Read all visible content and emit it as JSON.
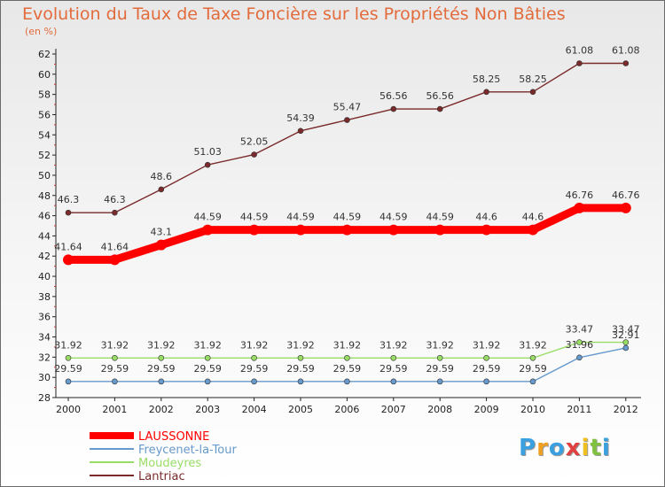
{
  "chart_data": {
    "type": "line",
    "title": "Evolution du Taux de Taxe Foncière sur les Propriétés Non Bâties",
    "ylabel": "(en %)",
    "xlabel": "",
    "ylim": [
      28,
      62
    ],
    "ytick_step": 2,
    "x": [
      "2000",
      "2001",
      "2002",
      "2003",
      "2004",
      "2005",
      "2006",
      "2007",
      "2008",
      "2009",
      "2010",
      "2011",
      "2012"
    ],
    "series": [
      {
        "name": "Lantriac",
        "color": "#7a2a2a",
        "values": [
          46.3,
          46.3,
          48.6,
          51.03,
          52.05,
          54.39,
          55.47,
          56.56,
          56.56,
          58.25,
          58.25,
          61.08,
          61.08
        ],
        "labels": [
          "46.3",
          "46.3",
          "48.6",
          "51.03",
          "52.05",
          "54.39",
          "55.47",
          "56.56",
          "56.56",
          "58.25",
          "58.25",
          "61.08",
          "61.08"
        ]
      },
      {
        "name": "LAUSSONNE",
        "color": "#ff0000",
        "values": [
          41.64,
          41.64,
          43.1,
          44.59,
          44.59,
          44.59,
          44.59,
          44.59,
          44.59,
          44.6,
          44.6,
          46.76,
          46.76
        ],
        "labels": [
          "41.64",
          "41.64",
          "43.1",
          "44.59",
          "44.59",
          "44.59",
          "44.59",
          "44.59",
          "44.59",
          "44.6",
          "44.6",
          "46.76",
          "46.76"
        ]
      },
      {
        "name": "Moudeyres",
        "color": "#99dd66",
        "values": [
          31.92,
          31.92,
          31.92,
          31.92,
          31.92,
          31.92,
          31.92,
          31.92,
          31.92,
          31.92,
          31.92,
          33.47,
          33.47
        ],
        "labels": [
          "31.92",
          "31.92",
          "31.92",
          "31.92",
          "31.92",
          "31.92",
          "31.92",
          "31.92",
          "31.92",
          "31.92",
          "31.92",
          "33.47",
          "33.47"
        ]
      },
      {
        "name": "Freycenet-la-Tour",
        "color": "#6699cc",
        "values": [
          29.59,
          29.59,
          29.59,
          29.59,
          29.59,
          29.59,
          29.59,
          29.59,
          29.59,
          29.59,
          29.59,
          31.96,
          32.91
        ],
        "labels": [
          "29.59",
          "29.59",
          "29.59",
          "29.59",
          "29.59",
          "29.59",
          "29.59",
          "29.59",
          "29.59",
          "29.59",
          "29.59",
          "31.96",
          "32.91"
        ]
      }
    ],
    "legend": {
      "placement": "bottom-left",
      "entries": [
        {
          "name": "LAUSSONNE",
          "color": "#ff0000"
        },
        {
          "name": "Freycenet-la-Tour",
          "color": "#6699cc"
        },
        {
          "name": "Moudeyres",
          "color": "#99dd66"
        },
        {
          "name": "Lantriac",
          "color": "#7a2a2a"
        }
      ]
    },
    "grid": false
  },
  "logo": {
    "letters": [
      "P",
      "r",
      "o",
      "x",
      "i",
      "t",
      "i"
    ],
    "colors": [
      "#3aa0e0",
      "#f0a020",
      "#3aa0e0",
      "#e04040",
      "#f0c020",
      "#80c040",
      "#3aa0e0"
    ]
  }
}
